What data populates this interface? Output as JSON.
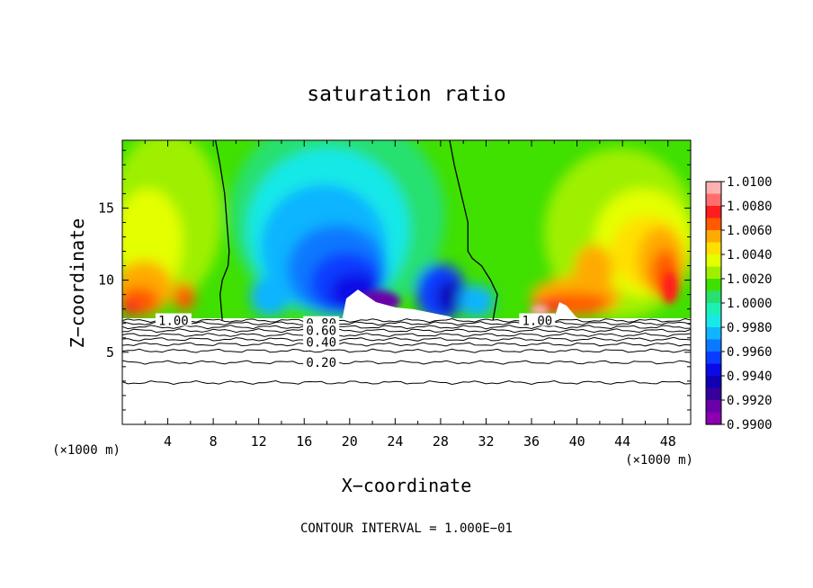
{
  "chart_data": {
    "type": "heatmap",
    "title": "saturation ratio",
    "xlabel": "X−coordinate",
    "ylabel": "Z−coordinate",
    "x_unit": "(×1000 m)",
    "y_unit": "(×1000 m)",
    "xlim": [
      0,
      50
    ],
    "ylim": [
      0,
      19.7
    ],
    "x_ticks": [
      "4",
      "8",
      "12",
      "16",
      "20",
      "24",
      "28",
      "32",
      "36",
      "40",
      "44",
      "48"
    ],
    "y_ticks": [
      "5",
      "10",
      "15"
    ],
    "footer": "CONTOUR INTERVAL = 1.000E−01",
    "colorbar": {
      "labels": [
        "1.0100",
        "1.0080",
        "1.0060",
        "1.0040",
        "1.0020",
        "1.0000",
        "0.9980",
        "0.9960",
        "0.9940",
        "0.9920",
        "0.9900"
      ],
      "colors": [
        "#ffb0b0",
        "#ff6e6e",
        "#ff1c1c",
        "#ff5a00",
        "#ffaa00",
        "#ffe000",
        "#e4ff00",
        "#9ef000",
        "#3ee000",
        "#28e070",
        "#1ef0b4",
        "#18e8e8",
        "#10b4ff",
        "#0a78ff",
        "#0a3cff",
        "#0a0ae6",
        "#1000b4",
        "#38009a",
        "#6a00a8",
        "#8c00b0"
      ]
    },
    "contour_labels": [
      {
        "text": "1.00",
        "x": 4.5,
        "z": 7.2
      },
      {
        "text": "0.80",
        "x": 17.5,
        "z": 7.0
      },
      {
        "text": "0.60",
        "x": 17.5,
        "z": 6.5
      },
      {
        "text": "0.40",
        "x": 17.5,
        "z": 5.7
      },
      {
        "text": "0.20",
        "x": 17.5,
        "z": 4.3
      },
      {
        "text": "1.00",
        "x": 36.5,
        "z": 7.2
      }
    ],
    "contour_levels": [
      {
        "level": 1.0,
        "z": 7.2
      },
      {
        "level": 0.9,
        "z": 7.0
      },
      {
        "level": 0.8,
        "z": 6.75
      },
      {
        "level": 0.7,
        "z": 6.5
      },
      {
        "level": 0.6,
        "z": 6.2
      },
      {
        "level": 0.5,
        "z": 5.9
      },
      {
        "level": 0.4,
        "z": 5.55
      },
      {
        "level": 0.3,
        "z": 5.1
      },
      {
        "level": 0.2,
        "z": 4.3
      },
      {
        "level": 0.1,
        "z": 2.9
      }
    ],
    "saturation_contour_1_00": [
      {
        "x": [
          8.2,
          8.6,
          9.0,
          9.2,
          9.4,
          9.3,
          8.8,
          8.6,
          8.8
        ],
        "z": [
          19.7,
          18,
          16,
          14,
          12,
          11,
          10,
          9,
          7.2
        ]
      },
      {
        "x": [
          28.8,
          29.2,
          29.8,
          30.4,
          30.4,
          30.8,
          31.6,
          32.4,
          33.0,
          32.6
        ],
        "z": [
          19.7,
          18,
          16,
          14,
          12,
          11.5,
          11,
          10,
          9,
          7.2
        ]
      }
    ]
  }
}
